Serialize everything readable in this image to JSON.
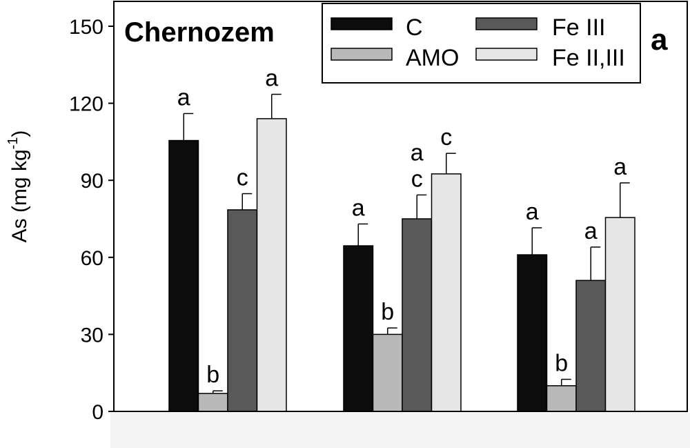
{
  "chart_data": {
    "type": "bar",
    "title": "Chernozem",
    "panel_label": "a",
    "ylabel": "As (mg kg",
    "ylabel_sup": "-1",
    "ylabel_close": ")",
    "ylim": [
      0,
      160
    ],
    "yticks": [
      0,
      30,
      60,
      90,
      120,
      150
    ],
    "categories": [
      "",
      "",
      ""
    ],
    "grid": false,
    "legend_position": "top-right",
    "series": [
      {
        "name": "C",
        "color": "#0c0c0c",
        "values": [
          105.5,
          64.5,
          61
        ],
        "errors": [
          10.5,
          8.5,
          10.5
        ],
        "labels": [
          "a",
          "a",
          "a"
        ]
      },
      {
        "name": "AMO",
        "color": "#b9b9b9",
        "values": [
          7,
          30,
          10
        ],
        "errors": [
          1,
          2.5,
          2.5
        ],
        "labels": [
          "b",
          "b",
          "b"
        ]
      },
      {
        "name": "Fe III",
        "color": "#595959",
        "values": [
          78.5,
          75,
          51
        ],
        "errors": [
          6.3,
          9.3,
          13
        ],
        "labels": [
          "c",
          "a\nc",
          "a"
        ]
      },
      {
        "name": "Fe II,III",
        "color": "#e6e6e6",
        "values": [
          114,
          92.5,
          75.5
        ],
        "errors": [
          9.5,
          8,
          13.5
        ],
        "labels": [
          "a",
          "c",
          "a"
        ]
      }
    ]
  }
}
